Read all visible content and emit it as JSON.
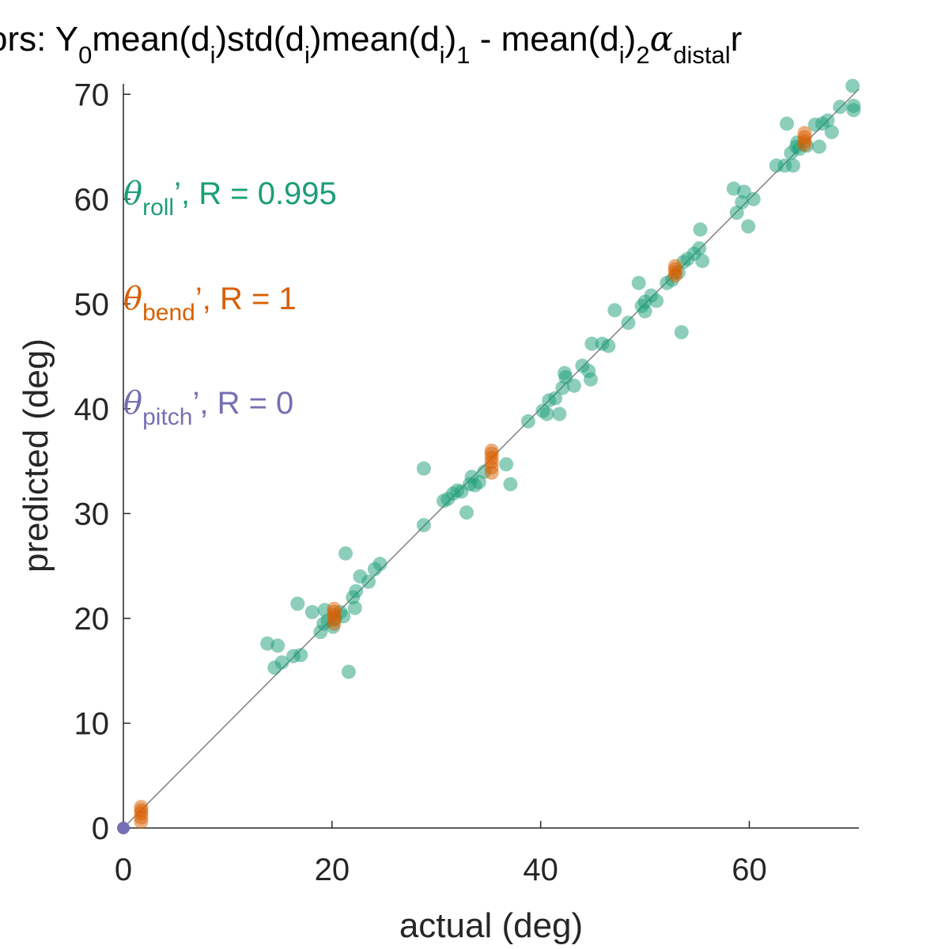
{
  "chart_data": {
    "type": "scatter",
    "title_parts": {
      "prefix": "ors: Y",
      "y_sub": "0",
      "mean1": "mean(d",
      "i_sub": "i",
      "close_std": ")std(d",
      "close_mean": ")mean(d",
      "close_sub1": ")",
      "sub1": "1",
      "minus_mean": " - mean(d",
      "sub2": "2",
      "alpha": "α",
      "distal_sub": "distal",
      "suffix": "r"
    },
    "xlabel": "actual (deg)",
    "ylabel": "predicted (deg)",
    "xlim": [
      0,
      70.5
    ],
    "ylim": [
      0,
      71
    ],
    "xticks": [
      0,
      20,
      40,
      60
    ],
    "yticks": [
      0,
      10,
      20,
      30,
      40,
      50,
      60,
      70
    ],
    "grid": false,
    "reference_line": {
      "from": [
        0,
        0
      ],
      "to": [
        70.5,
        70.5
      ],
      "color": "#808080"
    },
    "legend": {
      "placement": "top-left",
      "entries": [
        {
          "symbol": "θ",
          "sub": "roll",
          "text": "’, R = 0.995",
          "color": "#1b9e77"
        },
        {
          "symbol": "θ",
          "sub": "bend",
          "text": "’, R = 1",
          "color": "#d95f02"
        },
        {
          "symbol": "θ",
          "sub": "pitch",
          "text": "’, R = 0",
          "color": "#7570b3"
        }
      ]
    },
    "series": [
      {
        "name": "θroll",
        "color": "#1b9e77",
        "points": [
          [
            13.8,
            17.6
          ],
          [
            14.8,
            17.4
          ],
          [
            14.5,
            15.3
          ],
          [
            15.2,
            15.8
          ],
          [
            16.3,
            16.4
          ],
          [
            17.0,
            16.5
          ],
          [
            16.7,
            21.4
          ],
          [
            18.1,
            20.6
          ],
          [
            18.9,
            18.7
          ],
          [
            19.2,
            19.5
          ],
          [
            19.3,
            20.8
          ],
          [
            19.6,
            19.8
          ],
          [
            20.1,
            19.2
          ],
          [
            20.3,
            20.0
          ],
          [
            20.8,
            20.6
          ],
          [
            21.1,
            20.2
          ],
          [
            21.3,
            26.2
          ],
          [
            21.6,
            14.9
          ],
          [
            22.0,
            22.0
          ],
          [
            22.2,
            21.0
          ],
          [
            22.3,
            22.6
          ],
          [
            22.7,
            24.0
          ],
          [
            23.5,
            23.5
          ],
          [
            24.1,
            24.7
          ],
          [
            24.6,
            25.2
          ],
          [
            28.8,
            34.3
          ],
          [
            28.8,
            28.9
          ],
          [
            30.7,
            31.2
          ],
          [
            31.1,
            31.4
          ],
          [
            31.6,
            31.9
          ],
          [
            32.0,
            32.2
          ],
          [
            32.4,
            32.1
          ],
          [
            32.9,
            30.1
          ],
          [
            33.2,
            32.8
          ],
          [
            33.4,
            33.5
          ],
          [
            33.7,
            32.7
          ],
          [
            34.1,
            33.0
          ],
          [
            34.6,
            34.0
          ],
          [
            36.7,
            34.7
          ],
          [
            37.1,
            32.8
          ],
          [
            38.8,
            38.8
          ],
          [
            40.2,
            39.8
          ],
          [
            40.6,
            39.5
          ],
          [
            40.8,
            40.8
          ],
          [
            41.4,
            41.0
          ],
          [
            41.8,
            39.5
          ],
          [
            42.1,
            42.0
          ],
          [
            42.3,
            43.4
          ],
          [
            42.4,
            43.0
          ],
          [
            43.2,
            42.2
          ],
          [
            44.0,
            44.1
          ],
          [
            44.6,
            43.6
          ],
          [
            44.8,
            42.8
          ],
          [
            44.9,
            46.2
          ],
          [
            45.9,
            46.2
          ],
          [
            46.5,
            46.0
          ],
          [
            47.1,
            49.4
          ],
          [
            48.4,
            48.2
          ],
          [
            49.4,
            52.0
          ],
          [
            49.7,
            49.8
          ],
          [
            50.0,
            50.2
          ],
          [
            50.0,
            49.3
          ],
          [
            50.6,
            50.8
          ],
          [
            51.1,
            50.3
          ],
          [
            52.1,
            52.0
          ],
          [
            52.6,
            52.3
          ],
          [
            53.2,
            53.0
          ],
          [
            53.5,
            47.3
          ],
          [
            53.7,
            54.0
          ],
          [
            54.1,
            54.3
          ],
          [
            54.7,
            54.8
          ],
          [
            55.2,
            55.3
          ],
          [
            55.3,
            57.1
          ],
          [
            55.5,
            54.1
          ],
          [
            58.5,
            61.0
          ],
          [
            58.8,
            58.7
          ],
          [
            59.3,
            59.7
          ],
          [
            59.5,
            60.7
          ],
          [
            59.9,
            57.4
          ],
          [
            60.4,
            60.0
          ],
          [
            62.6,
            63.2
          ],
          [
            63.4,
            63.2
          ],
          [
            63.6,
            67.2
          ],
          [
            64.0,
            64.4
          ],
          [
            64.2,
            63.2
          ],
          [
            64.5,
            65.0
          ],
          [
            64.6,
            65.4
          ],
          [
            64.8,
            64.8
          ],
          [
            65.5,
            65.1
          ],
          [
            66.3,
            67.1
          ],
          [
            66.7,
            65.0
          ],
          [
            67.0,
            67.2
          ],
          [
            67.5,
            67.5
          ],
          [
            67.9,
            66.4
          ],
          [
            68.7,
            68.8
          ],
          [
            69.9,
            70.8
          ],
          [
            70.0,
            68.5
          ],
          [
            70.0,
            68.9
          ]
        ]
      },
      {
        "name": "θbend",
        "color": "#d95f02",
        "points": [
          [
            1.7,
            0.6
          ],
          [
            1.7,
            1.0
          ],
          [
            1.7,
            1.4
          ],
          [
            1.7,
            1.7
          ],
          [
            1.7,
            2.0
          ],
          [
            20.2,
            19.5
          ],
          [
            20.2,
            19.9
          ],
          [
            20.2,
            20.3
          ],
          [
            20.2,
            20.6
          ],
          [
            20.2,
            20.9
          ],
          [
            35.3,
            33.9
          ],
          [
            35.3,
            34.4
          ],
          [
            35.3,
            34.9
          ],
          [
            35.3,
            35.3
          ],
          [
            35.3,
            35.7
          ],
          [
            35.3,
            36.0
          ],
          [
            52.9,
            52.7
          ],
          [
            52.9,
            53.0
          ],
          [
            52.9,
            53.3
          ],
          [
            52.9,
            53.6
          ],
          [
            65.3,
            65.2
          ],
          [
            65.3,
            65.5
          ],
          [
            65.3,
            65.9
          ],
          [
            65.3,
            66.3
          ]
        ]
      },
      {
        "name": "θpitch",
        "color": "#7570b3",
        "points": [
          [
            0,
            0
          ]
        ]
      }
    ]
  }
}
